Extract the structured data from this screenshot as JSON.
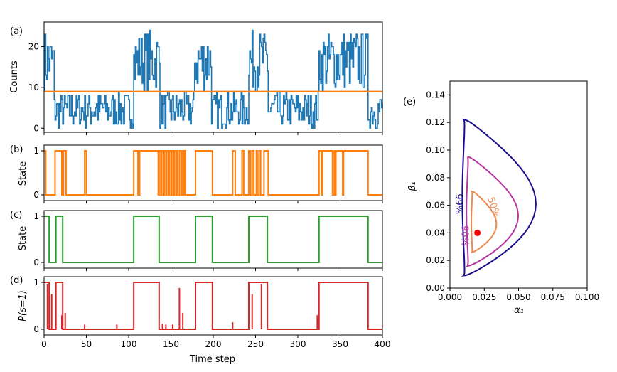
{
  "chart_data": [
    {
      "panel": "(a)",
      "type": "line",
      "ylabel": "Counts",
      "xlim": [
        0,
        400
      ],
      "ylim": [
        -1,
        26
      ],
      "yticks": [
        0,
        10,
        20
      ],
      "threshold": {
        "value": 9,
        "color": "#ff7f0e"
      },
      "series_color": "#1f77b4",
      "segments": [
        {
          "start": 0,
          "end": 12,
          "level": "high"
        },
        {
          "start": 12,
          "end": 106,
          "level": "low"
        },
        {
          "start": 106,
          "end": 137,
          "level": "high"
        },
        {
          "start": 137,
          "end": 178,
          "level": "low"
        },
        {
          "start": 178,
          "end": 198,
          "level": "high"
        },
        {
          "start": 198,
          "end": 242,
          "level": "low"
        },
        {
          "start": 242,
          "end": 265,
          "level": "high"
        },
        {
          "start": 265,
          "end": 325,
          "level": "low"
        },
        {
          "start": 325,
          "end": 383,
          "level": "high"
        },
        {
          "start": 383,
          "end": 400,
          "level": "low"
        }
      ],
      "high_range": [
        9,
        24
      ],
      "low_range": [
        0,
        9
      ]
    },
    {
      "panel": "(b)",
      "type": "line",
      "ylabel": "State",
      "xlim": [
        0,
        400
      ],
      "yticks": [
        0,
        1
      ],
      "color": "#ff7f0e",
      "high_intervals": [
        [
          0,
          2
        ],
        [
          13,
          21
        ],
        [
          23,
          26
        ],
        [
          48,
          50
        ],
        [
          106,
          111
        ],
        [
          113,
          135
        ],
        [
          136,
          138
        ],
        [
          139,
          141
        ],
        [
          142,
          144
        ],
        [
          145,
          147
        ],
        [
          148,
          150
        ],
        [
          151,
          153
        ],
        [
          154,
          156
        ],
        [
          157,
          158
        ],
        [
          160,
          162
        ],
        [
          163,
          165
        ],
        [
          166,
          167
        ],
        [
          179,
          199
        ],
        [
          223,
          226
        ],
        [
          234,
          236
        ],
        [
          242,
          244
        ],
        [
          246,
          248
        ],
        [
          251,
          252
        ],
        [
          254,
          256
        ],
        [
          260,
          265
        ],
        [
          325,
          328
        ],
        [
          329,
          341
        ],
        [
          343,
          344
        ],
        [
          345,
          353
        ],
        [
          354,
          383
        ]
      ]
    },
    {
      "panel": "(c)",
      "type": "line",
      "ylabel": "State",
      "xlim": [
        0,
        400
      ],
      "yticks": [
        0,
        1
      ],
      "color": "#2ca02c",
      "high_intervals": [
        [
          0,
          6
        ],
        [
          14,
          22
        ],
        [
          106,
          136
        ],
        [
          179,
          199
        ],
        [
          242,
          264
        ],
        [
          325,
          383
        ]
      ]
    },
    {
      "panel": "(d)",
      "type": "line",
      "ylabel": "P(s=1)",
      "xlabel": "Time step",
      "xlim": [
        0,
        400
      ],
      "xticks": [
        0,
        50,
        100,
        150,
        200,
        250,
        300,
        350,
        400
      ],
      "yticks": [
        0,
        1
      ],
      "color": "#d62728",
      "high_intervals": [
        [
          0,
          6
        ],
        [
          14,
          22
        ],
        [
          106,
          136
        ],
        [
          179,
          199
        ],
        [
          242,
          264
        ],
        [
          325,
          383
        ]
      ],
      "spikes": [
        [
          4,
          0.97
        ],
        [
          9,
          0.75
        ],
        [
          21,
          0.3
        ],
        [
          25,
          0.35
        ],
        [
          48,
          0.1
        ],
        [
          86,
          0.1
        ],
        [
          140,
          0.12
        ],
        [
          144,
          0.1
        ],
        [
          152,
          0.1
        ],
        [
          160,
          0.88
        ],
        [
          164,
          0.35
        ],
        [
          223,
          0.15
        ],
        [
          246,
          0.75
        ],
        [
          257,
          0.97
        ],
        [
          323,
          0.3
        ]
      ]
    },
    {
      "panel": "(e)",
      "type": "contour",
      "xlabel": "α₁",
      "ylabel": "β₁",
      "xlim": [
        0.0,
        0.1
      ],
      "ylim": [
        0.0,
        0.15
      ],
      "xticks": [
        "0.000",
        "0.025",
        "0.050",
        "0.075",
        "0.100"
      ],
      "yticks": [
        "0.00",
        "0.02",
        "0.04",
        "0.06",
        "0.08",
        "0.10",
        "0.12",
        "0.14"
      ],
      "point": {
        "x": 0.02,
        "y": 0.04,
        "color": "#ff0000"
      },
      "contours": [
        {
          "label": "99%",
          "color": "#1a0f8a",
          "xmin": 0.005,
          "xmax": 0.063,
          "ymin": 0.009,
          "ymax": 0.122,
          "xpeak": 0.025
        },
        {
          "label": "90%",
          "color": "#b5369e",
          "xmin": 0.009,
          "xmax": 0.05,
          "ymin": 0.016,
          "ymax": 0.095,
          "xpeak": 0.024
        },
        {
          "label": "50%",
          "color": "#ef8a4c",
          "xmin": 0.014,
          "xmax": 0.034,
          "ymin": 0.026,
          "ymax": 0.07,
          "xpeak": 0.022
        }
      ]
    }
  ],
  "labels": {
    "a": "(a)",
    "b": "(b)",
    "c": "(c)",
    "d": "(d)",
    "e": "(e)",
    "counts": "Counts",
    "state": "State",
    "prob": "P(s=1)",
    "time": "Time step",
    "alpha": "α₁",
    "beta": "β₁"
  }
}
